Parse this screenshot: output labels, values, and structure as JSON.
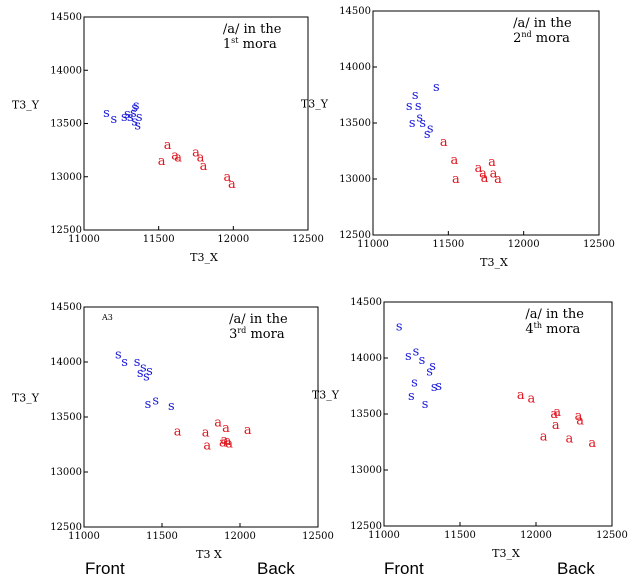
{
  "colors": {
    "s": "#1a1adc",
    "a": "#e0141e",
    "axis": "#000000"
  },
  "footer": {
    "front_left": "Front",
    "back_left": "Back",
    "front_right": "Front",
    "back_right": "Back"
  },
  "chart_data": [
    {
      "type": "scatter",
      "annotation_line1": "/a/ in the",
      "annotation_line2": "1st mora",
      "corner_label": "",
      "xlabel": "T3_X",
      "ylabel": "T3_Y",
      "xlim": [
        11000,
        12500
      ],
      "ylim": [
        12500,
        14500
      ],
      "xticks": [
        "11000",
        "11500",
        "12000",
        "12500"
      ],
      "yticks": [
        "12500",
        "13000",
        "13500",
        "14000",
        "14500"
      ],
      "series": [
        {
          "marker": "s",
          "points": [
            [
              11150,
              13600
            ],
            [
              11200,
              13540
            ],
            [
              11270,
              13560
            ],
            [
              11290,
              13590
            ],
            [
              11310,
              13560
            ],
            [
              11330,
              13600
            ],
            [
              11340,
              13650
            ],
            [
              11340,
              13520
            ],
            [
              11350,
              13670
            ],
            [
              11360,
              13480
            ],
            [
              11370,
              13560
            ]
          ]
        },
        {
          "marker": "a",
          "points": [
            [
              11520,
              13150
            ],
            [
              11560,
              13300
            ],
            [
              11610,
              13200
            ],
            [
              11630,
              13180
            ],
            [
              11750,
              13230
            ],
            [
              11780,
              13180
            ],
            [
              11800,
              13100
            ],
            [
              11960,
              13000
            ],
            [
              11990,
              12930
            ]
          ]
        }
      ]
    },
    {
      "type": "scatter",
      "annotation_line1": "/a/ in the",
      "annotation_line2": "2nd mora",
      "corner_label": "",
      "xlabel": "T3_X",
      "ylabel": "T3_Y",
      "xlim": [
        11000,
        12500
      ],
      "ylim": [
        12500,
        14500
      ],
      "xticks": [
        "11000",
        "11500",
        "12000",
        "12500"
      ],
      "yticks": [
        "12500",
        "13000",
        "13500",
        "14000",
        "14500"
      ],
      "series": [
        {
          "marker": "s",
          "points": [
            [
              11240,
              13650
            ],
            [
              11260,
              13500
            ],
            [
              11280,
              13750
            ],
            [
              11300,
              13650
            ],
            [
              11310,
              13550
            ],
            [
              11330,
              13500
            ],
            [
              11360,
              13400
            ],
            [
              11380,
              13450
            ],
            [
              11420,
              13820
            ]
          ]
        },
        {
          "marker": "a",
          "points": [
            [
              11470,
              13330
            ],
            [
              11540,
              13170
            ],
            [
              11550,
              13000
            ],
            [
              11700,
              13100
            ],
            [
              11730,
              13050
            ],
            [
              11740,
              13010
            ],
            [
              11790,
              13150
            ],
            [
              11800,
              13050
            ],
            [
              11830,
              13000
            ]
          ]
        }
      ]
    },
    {
      "type": "scatter",
      "annotation_line1": "/a/ in the",
      "annotation_line2": "3rd mora",
      "corner_label": "A3",
      "xlabel": "T3 X",
      "ylabel": "T3_Y",
      "xlim": [
        11000,
        12500
      ],
      "ylim": [
        12500,
        14500
      ],
      "xticks": [
        "11000",
        "11500",
        "12000",
        "12500"
      ],
      "yticks": [
        "12500",
        "13000",
        "13500",
        "14000",
        "14500"
      ],
      "series": [
        {
          "marker": "s",
          "points": [
            [
              11220,
              14070
            ],
            [
              11260,
              14000
            ],
            [
              11340,
              14000
            ],
            [
              11360,
              13900
            ],
            [
              11380,
              13950
            ],
            [
              11400,
              13870
            ],
            [
              11420,
              13920
            ],
            [
              11410,
              13620
            ],
            [
              11460,
              13650
            ],
            [
              11560,
              13600
            ]
          ]
        },
        {
          "marker": "a",
          "points": [
            [
              11600,
              13370
            ],
            [
              11780,
              13360
            ],
            [
              11790,
              13240
            ],
            [
              11860,
              13450
            ],
            [
              11890,
              13270
            ],
            [
              11900,
              13290
            ],
            [
              11910,
              13400
            ],
            [
              11920,
              13280
            ],
            [
              11930,
              13260
            ],
            [
              12050,
              13380
            ]
          ]
        }
      ]
    },
    {
      "type": "scatter",
      "annotation_line1": "/a/ in the",
      "annotation_line2": "4th mora",
      "corner_label": "",
      "xlabel": "T3_X",
      "ylabel": "T3_Y",
      "xlim": [
        11000,
        12500
      ],
      "ylim": [
        12500,
        14500
      ],
      "xticks": [
        "11000",
        "11500",
        "12000",
        "12500"
      ],
      "yticks": [
        "12500",
        "13000",
        "13500",
        "14000",
        "14500"
      ],
      "series": [
        {
          "marker": "s",
          "points": [
            [
              11100,
              14280
            ],
            [
              11160,
              14020
            ],
            [
              11180,
              13660
            ],
            [
              11200,
              13780
            ],
            [
              11210,
              14060
            ],
            [
              11250,
              13980
            ],
            [
              11270,
              13590
            ],
            [
              11300,
              13880
            ],
            [
              11320,
              13930
            ],
            [
              11330,
              13740
            ],
            [
              11360,
              13750
            ]
          ]
        },
        {
          "marker": "a",
          "points": [
            [
              11900,
              13670
            ],
            [
              11970,
              13640
            ],
            [
              12050,
              13300
            ],
            [
              12120,
              13500
            ],
            [
              12130,
              13400
            ],
            [
              12140,
              13520
            ],
            [
              12220,
              13280
            ],
            [
              12280,
              13480
            ],
            [
              12290,
              13440
            ],
            [
              12370,
              13240
            ]
          ]
        }
      ]
    }
  ]
}
